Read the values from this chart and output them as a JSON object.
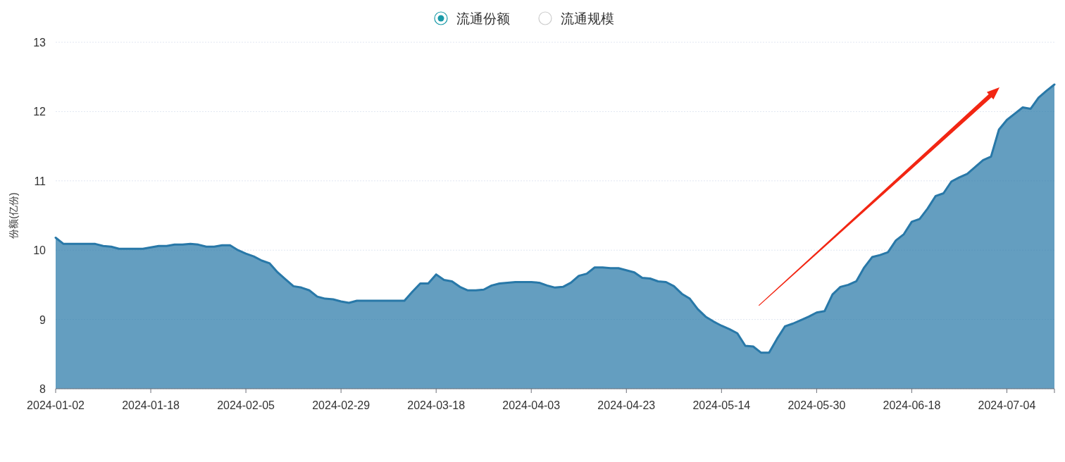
{
  "chart_data": {
    "type": "area",
    "annotations": [
      "流通份额",
      "流通规模"
    ],
    "ylabel": "份额(亿份)",
    "categories": [
      "2024-01-02",
      null,
      null,
      null,
      null,
      null,
      null,
      null,
      null,
      null,
      null,
      null,
      "2024-01-18",
      null,
      null,
      null,
      null,
      null,
      null,
      null,
      null,
      null,
      null,
      null,
      "2024-02-05",
      null,
      null,
      null,
      null,
      null,
      null,
      null,
      null,
      null,
      null,
      null,
      "2024-02-29",
      null,
      null,
      null,
      null,
      null,
      null,
      null,
      null,
      null,
      null,
      null,
      "2024-03-18",
      null,
      null,
      null,
      null,
      null,
      null,
      null,
      null,
      null,
      null,
      null,
      "2024-04-03",
      null,
      null,
      null,
      null,
      null,
      null,
      null,
      null,
      null,
      null,
      null,
      "2024-04-23",
      null,
      null,
      null,
      null,
      null,
      null,
      null,
      null,
      null,
      null,
      null,
      "2024-05-14",
      null,
      null,
      null,
      null,
      null,
      null,
      null,
      null,
      null,
      null,
      null,
      "2024-05-30",
      null,
      null,
      null,
      null,
      null,
      null,
      null,
      null,
      null,
      null,
      null,
      "2024-06-18",
      null,
      null,
      null,
      null,
      null,
      null,
      null,
      null,
      null,
      null,
      null,
      "2024-07-04",
      null,
      null,
      null,
      null,
      null,
      null
    ],
    "series": [
      {
        "color": "#2878a8",
        "values": [
          10.18,
          10.09,
          10.09,
          10.09,
          10.09,
          10.09,
          10.06,
          10.05,
          10.02,
          10.02,
          10.02,
          10.02,
          10.04,
          10.06,
          10.06,
          10.08,
          10.08,
          10.09,
          10.08,
          10.05,
          10.05,
          10.07,
          10.07,
          10.0,
          9.95,
          9.91,
          9.85,
          9.81,
          9.68,
          9.58,
          9.48,
          9.46,
          9.42,
          9.33,
          9.3,
          9.29,
          9.26,
          9.24,
          9.27,
          9.27,
          9.27,
          9.27,
          9.27,
          9.27,
          9.27,
          9.4,
          9.52,
          9.52,
          9.65,
          9.57,
          9.55,
          9.47,
          9.42,
          9.42,
          9.43,
          9.49,
          9.52,
          9.53,
          9.54,
          9.54,
          9.54,
          9.53,
          9.49,
          9.46,
          9.47,
          9.53,
          9.63,
          9.66,
          9.75,
          9.75,
          9.74,
          9.74,
          9.71,
          9.68,
          9.6,
          9.59,
          9.55,
          9.54,
          9.48,
          9.37,
          9.3,
          9.15,
          9.04,
          8.97,
          8.91,
          8.86,
          8.8,
          8.62,
          8.61,
          8.52,
          8.52,
          8.72,
          8.9,
          8.94,
          8.99,
          9.04,
          9.1,
          9.12,
          9.36,
          9.47,
          9.5,
          9.55,
          9.75,
          9.9,
          9.93,
          9.97,
          10.14,
          10.23,
          10.41,
          10.45,
          10.6,
          10.78,
          10.82,
          10.99,
          11.05,
          11.1,
          11.2,
          11.3,
          11.35,
          11.74,
          11.88,
          11.97,
          12.06,
          12.04,
          12.2,
          12.3,
          12.39
        ]
      }
    ],
    "ylim": [
      8,
      13
    ],
    "yticks": [
      8,
      9,
      10,
      11,
      12,
      13
    ],
    "grid": "y"
  }
}
